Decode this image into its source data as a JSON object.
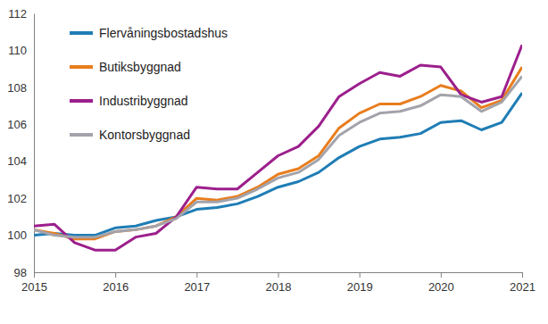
{
  "chart_data": {
    "type": "line",
    "x": [
      2015,
      2015.25,
      2015.5,
      2015.75,
      2016,
      2016.25,
      2016.5,
      2016.75,
      2017,
      2017.25,
      2017.5,
      2017.75,
      2018,
      2018.25,
      2018.5,
      2018.75,
      2019,
      2019.25,
      2019.5,
      2019.75,
      2020,
      2020.25,
      2020.5,
      2020.75,
      2021
    ],
    "series": [
      {
        "name": "Flervåningsbostadshus",
        "color": "#1f7db5",
        "values": [
          100.0,
          100.1,
          100.0,
          100.0,
          100.4,
          100.5,
          100.8,
          101.0,
          101.4,
          101.5,
          101.7,
          102.1,
          102.6,
          102.9,
          103.4,
          104.2,
          104.8,
          105.2,
          105.3,
          105.5,
          106.1,
          106.2,
          105.7,
          106.1,
          107.7
        ]
      },
      {
        "name": "Butiksbyggnad",
        "color": "#e87d1e",
        "values": [
          100.3,
          100.1,
          99.8,
          99.8,
          100.2,
          100.3,
          100.5,
          101.0,
          102.0,
          101.9,
          102.1,
          102.6,
          103.3,
          103.6,
          104.3,
          105.8,
          106.6,
          107.1,
          107.1,
          107.5,
          108.1,
          107.8,
          106.9,
          107.3,
          109.1
        ]
      },
      {
        "name": "Industribyggnad",
        "color": "#9c1f8c",
        "values": [
          100.5,
          100.6,
          99.6,
          99.2,
          99.2,
          99.9,
          100.1,
          101.0,
          102.6,
          102.5,
          102.5,
          103.4,
          104.3,
          104.8,
          105.9,
          107.5,
          108.2,
          108.8,
          108.6,
          109.2,
          109.1,
          107.6,
          107.2,
          107.5,
          110.3
        ]
      },
      {
        "name": "Kontorsbyggnad",
        "color": "#a3a3ab",
        "values": [
          100.3,
          100.0,
          99.9,
          99.9,
          100.2,
          100.3,
          100.5,
          100.9,
          101.8,
          101.8,
          102.0,
          102.5,
          103.1,
          103.4,
          104.1,
          105.4,
          106.1,
          106.6,
          106.7,
          107.0,
          107.6,
          107.5,
          106.7,
          107.2,
          108.6
        ]
      }
    ],
    "xlim": [
      2015,
      2021
    ],
    "xticks": [
      2015,
      2016,
      2017,
      2018,
      2019,
      2020,
      2021
    ],
    "ylim": [
      98,
      112
    ],
    "yticks": [
      98,
      100,
      102,
      104,
      106,
      108,
      110,
      112
    ],
    "grid": false,
    "legend": "upper left"
  }
}
